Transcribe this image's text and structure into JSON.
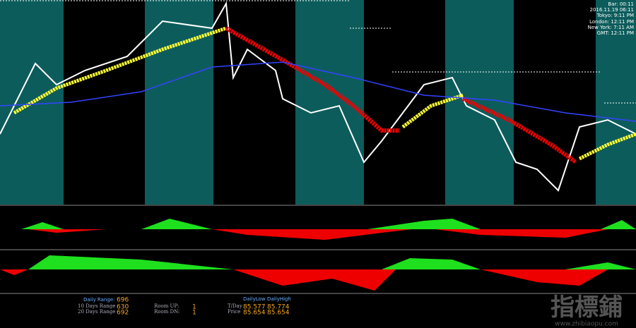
{
  "clock": {
    "bar": "Bar:      00:11",
    "server": "2016.11.19 06:11",
    "tokyo": "Tokyo:  9:11 PM",
    "london": "London: 12:11 PM",
    "new_york": "New York:  7:11 AM",
    "gmt": "GMT: 12:11 PM"
  },
  "info": {
    "daily_range_label": "Daily Range:",
    "daily_range": "696",
    "ten_days_label": "10 Days Range",
    "ten_days": "630",
    "twenty_days_label": "20 Days Range",
    "twenty_days": "692",
    "room_up_label": "Room UP:",
    "room_up": "1",
    "room_dn_label": "Room DN:",
    "room_dn": "1",
    "daily_low_label": "DailyLow",
    "daily_high_label": "DailyHigh",
    "today_label": "T/Day",
    "today_low": "85.577",
    "today_high": "85.774",
    "price_label": "Price",
    "price_low": "85.654",
    "price_high": "85.654"
  },
  "watermark": {
    "title": "指標鋪",
    "url": "www.zhibiaopu.com"
  }
}
